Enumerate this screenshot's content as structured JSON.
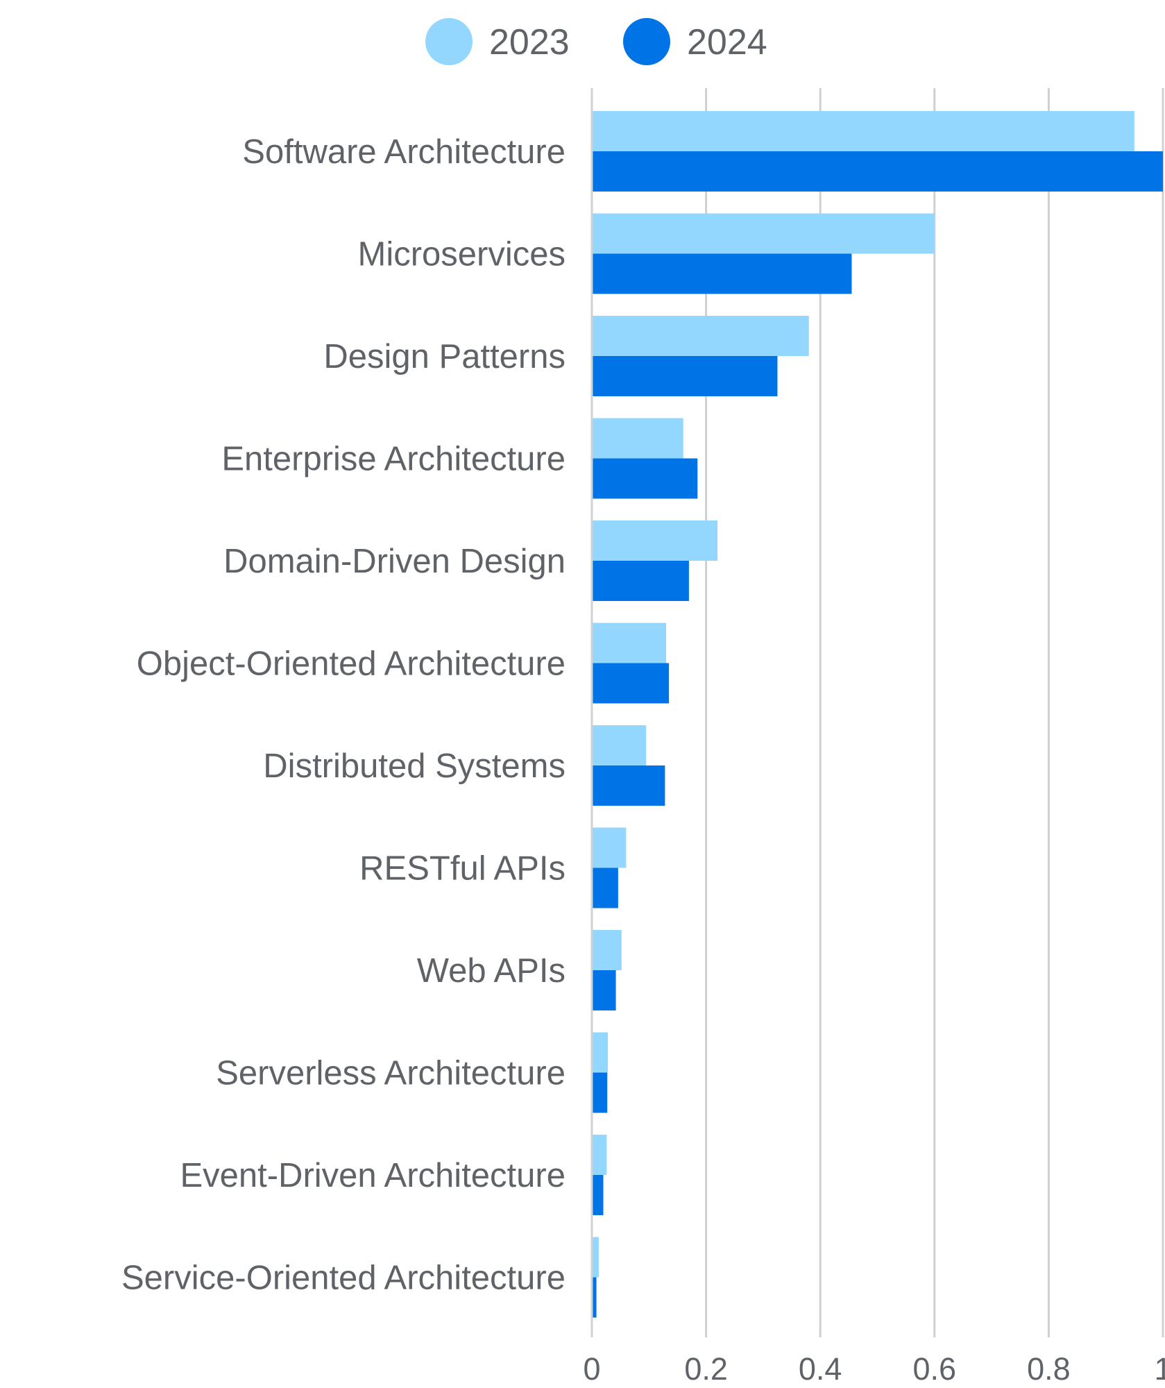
{
  "chart_data": {
    "type": "bar",
    "orientation": "horizontal",
    "categories": [
      "Software Architecture",
      "Microservices",
      "Design Patterns",
      "Enterprise Architecture",
      "Domain-Driven Design",
      "Object-Oriented Architecture",
      "Distributed Systems",
      "RESTful APIs",
      "Web APIs",
      "Serverless Architecture",
      "Event-Driven Architecture",
      "Service-Oriented Architecture"
    ],
    "series": [
      {
        "name": "2023",
        "color": "#93d7ff",
        "values": [
          0.95,
          0.6,
          0.38,
          0.16,
          0.22,
          0.13,
          0.095,
          0.06,
          0.052,
          0.028,
          0.026,
          0.012
        ]
      },
      {
        "name": "2024",
        "color": "#0073e6",
        "values": [
          1.0,
          0.455,
          0.325,
          0.185,
          0.17,
          0.135,
          0.128,
          0.046,
          0.042,
          0.027,
          0.02,
          0.008
        ]
      }
    ],
    "x_ticks": [
      "0",
      "0.2",
      "0.4",
      "0.6",
      "0.8",
      "1"
    ],
    "xlim": [
      0,
      1
    ],
    "grid": true,
    "legend_position": "top-center",
    "title": "",
    "xlabel": "",
    "ylabel": ""
  }
}
